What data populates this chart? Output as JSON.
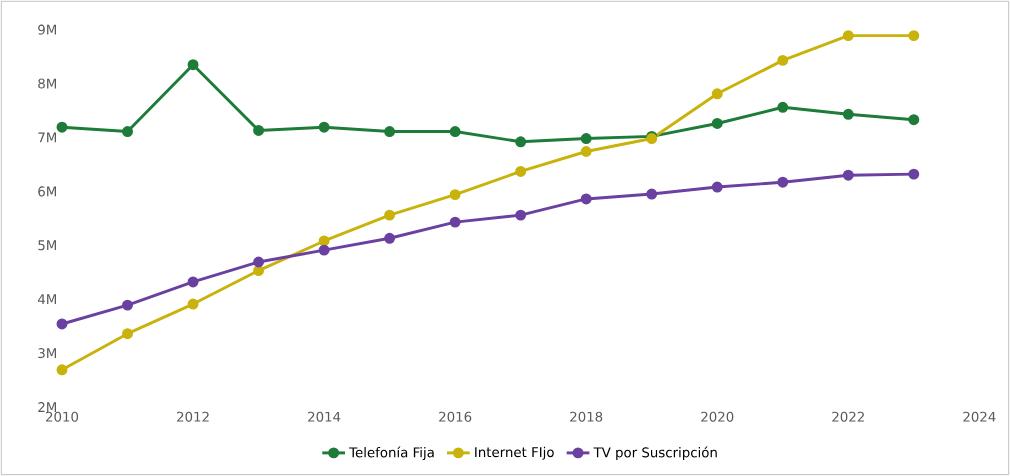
{
  "chart_data": {
    "type": "line",
    "x": [
      2010,
      2011,
      2012,
      2013,
      2014,
      2015,
      2016,
      2017,
      2018,
      2019,
      2020,
      2021,
      2022,
      2023
    ],
    "series": [
      {
        "name": "Telefonía Fija",
        "color": "#1e7b3a",
        "values": [
          7.19,
          7.11,
          8.35,
          7.13,
          7.19,
          7.11,
          7.11,
          6.92,
          6.98,
          7.02,
          7.26,
          7.56,
          7.43,
          7.33
        ]
      },
      {
        "name": "Internet FIjo",
        "color": "#c9b20c",
        "values": [
          2.69,
          3.36,
          3.91,
          4.53,
          5.08,
          5.56,
          5.94,
          6.37,
          6.74,
          6.98,
          7.81,
          8.43,
          8.89,
          8.89
        ]
      },
      {
        "name": "TV por Suscripción",
        "color": "#6a40a0",
        "values": [
          3.54,
          3.89,
          4.32,
          4.69,
          4.91,
          5.13,
          5.43,
          5.56,
          5.86,
          5.95,
          6.08,
          6.17,
          6.3,
          6.32
        ]
      }
    ],
    "xlim": [
      2010,
      2024
    ],
    "xticks": [
      2010,
      2012,
      2014,
      2016,
      2018,
      2020,
      2022,
      2024
    ],
    "ylim": [
      2,
      9
    ],
    "yticks": [
      {
        "value": 2,
        "label": "2M"
      },
      {
        "value": 3,
        "label": "3M"
      },
      {
        "value": 4,
        "label": "4M"
      },
      {
        "value": 5,
        "label": "5M"
      },
      {
        "value": 6,
        "label": "6M"
      },
      {
        "value": 7,
        "label": "7M"
      },
      {
        "value": 8,
        "label": "8M"
      },
      {
        "value": 9,
        "label": "9M"
      }
    ],
    "grid": false,
    "legend": "bottom",
    "marker": "circle",
    "line_style": "solid"
  }
}
